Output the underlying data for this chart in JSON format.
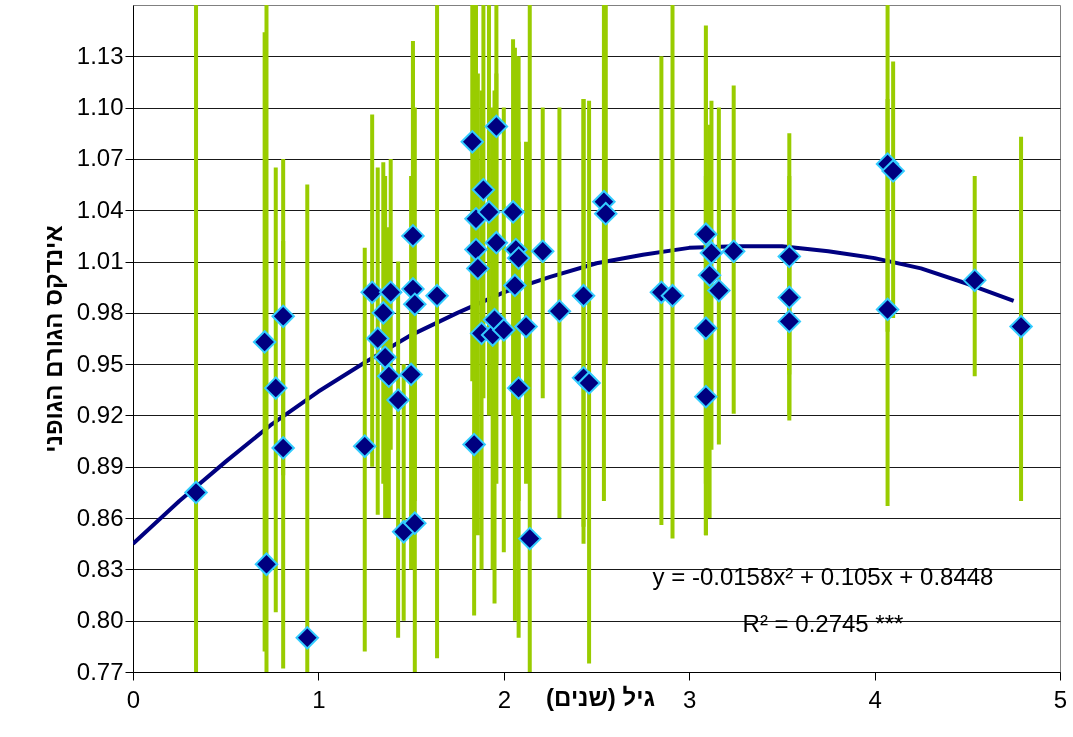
{
  "chart_data": {
    "type": "scatter",
    "xlabel": "גיל (שנים)",
    "ylabel": "אינדקס הגורם הגופני",
    "xlim": [
      0,
      5
    ],
    "xticks": [
      0,
      1,
      2,
      3,
      4,
      5
    ],
    "ylim": [
      0.77,
      1.16
    ],
    "yticks": [
      0.77,
      {
        "value": 0.8,
        "label": "0.80"
      },
      0.83,
      0.86,
      0.89,
      0.92,
      0.95,
      0.98,
      1.01,
      1.04,
      1.07,
      {
        "value": 1.1,
        "label": "1.10"
      },
      1.13
    ],
    "grid": "y",
    "marker": "diamond",
    "annotations": [
      "y = -0.0158x² + 0.105x + 0.8448",
      "R² = 0.2745 ***"
    ],
    "series": [
      {
        "color": "#000080",
        "x": [
          0.34,
          0.71,
          0.72,
          0.77,
          0.81,
          0.81,
          0.94,
          1.25,
          1.29,
          1.32,
          1.35,
          1.36,
          1.38,
          1.39,
          1.43,
          1.46,
          1.5,
          1.51,
          1.51,
          1.52,
          1.52,
          1.64,
          1.83,
          1.85,
          1.85,
          1.86,
          1.88,
          1.84,
          1.89,
          1.92,
          1.94,
          1.95,
          1.96,
          1.96,
          2.0,
          2.05,
          2.065,
          2.06,
          2.08,
          2.08,
          2.12,
          2.14,
          2.21,
          2.3,
          2.43,
          2.43,
          2.46,
          2.54,
          2.55,
          2.85,
          2.91,
          3.09,
          3.11,
          3.09,
          3.09,
          3.12,
          3.16,
          3.24,
          3.54,
          3.54,
          3.54,
          4.07,
          4.1,
          4.07,
          4.54,
          4.79
        ],
        "values": [
          0.875,
          0.963,
          0.833,
          0.936,
          0.901,
          0.978,
          0.79,
          0.902,
          0.992,
          0.965,
          0.98,
          0.954,
          0.943,
          0.992,
          0.929,
          0.852,
          0.944,
          1.025,
          0.994,
          0.985,
          0.857,
          0.99,
          1.08,
          1.035,
          1.017,
          1.006,
          0.968,
          0.903,
          1.052,
          1.039,
          0.967,
          0.976,
          1.089,
          1.021,
          0.97,
          1.039,
          1.017,
          0.996,
          1.012,
          0.936,
          0.972,
          0.848,
          1.016,
          0.981,
          0.99,
          0.942,
          0.939,
          1.045,
          1.038,
          0.992,
          0.99,
          1.026,
          1.002,
          0.971,
          0.931,
          1.015,
          0.993,
          1.016,
          1.013,
          0.989,
          0.975,
          1.067,
          1.063,
          0.982,
          0.999,
          0.972
        ],
        "errors": [
          [
            0.77,
            1.16
          ],
          [
            0.782,
            1.144
          ],
          [
            0.77,
            1.16
          ],
          [
            0.805,
            1.065
          ],
          [
            0.772,
            1.07
          ],
          [
            0.885,
            1.022
          ],
          [
            0.77,
            1.055
          ],
          [
            0.782,
            1.018
          ],
          [
            0.89,
            1.096
          ],
          [
            0.862,
            1.065
          ],
          [
            0.88,
            1.068
          ],
          [
            0.86,
            1.06
          ],
          [
            0.86,
            1.03
          ],
          [
            0.9,
            1.07
          ],
          [
            0.79,
            1.01
          ],
          [
            0.8,
            0.95
          ],
          [
            0.83,
            1.06
          ],
          [
            0.91,
            1.139
          ],
          [
            0.86,
            1.13
          ],
          [
            0.87,
            1.1
          ],
          [
            0.77,
            0.94
          ],
          [
            0.778,
            1.16
          ],
          [
            0.94,
            1.16
          ],
          [
            0.91,
            1.16
          ],
          [
            0.88,
            1.14
          ],
          [
            0.85,
            1.12
          ],
          [
            0.83,
            1.11
          ],
          [
            0.803,
            1.0
          ],
          [
            0.93,
            1.16
          ],
          [
            0.92,
            1.16
          ],
          [
            0.83,
            1.1
          ],
          [
            0.81,
            1.11
          ],
          [
            0.95,
            1.16
          ],
          [
            0.88,
            1.12
          ],
          [
            0.84,
            1.1
          ],
          [
            0.92,
            1.14
          ],
          [
            0.9,
            1.13
          ],
          [
            0.8,
            1.135
          ],
          [
            0.87,
            1.13
          ],
          [
            0.79,
            1.08
          ],
          [
            0.88,
            1.08
          ],
          [
            0.77,
            1.16
          ],
          [
            0.93,
            1.1
          ],
          [
            0.86,
            1.1
          ],
          [
            0.855,
            1.105
          ],
          [
            0.845,
            1.105
          ],
          [
            0.775,
            1.104
          ],
          [
            0.87,
            1.16
          ],
          [
            0.95,
            1.16
          ],
          [
            0.856,
            1.13
          ],
          [
            0.848,
            1.16
          ],
          [
            0.85,
            1.13
          ],
          [
            0.86,
            1.09
          ],
          [
            0.88,
            1.06
          ],
          [
            0.85,
            1.148
          ],
          [
            0.9,
            1.104
          ],
          [
            0.903,
            1.1
          ],
          [
            0.921,
            1.113
          ],
          [
            0.917,
            1.085
          ],
          [
            0.92,
            1.06
          ],
          [
            0.944,
            1.04
          ],
          [
            0.969,
            1.16
          ],
          [
            0.977,
            1.127
          ],
          [
            0.867,
            1.105
          ],
          [
            0.943,
            1.06
          ],
          [
            0.87,
            1.083
          ]
        ]
      },
      {
        "type": "line",
        "color": "#000080",
        "marker": "none",
        "x": [
          0,
          0.25,
          0.5,
          0.75,
          1,
          1.25,
          1.5,
          1.75,
          2,
          2.25,
          2.5,
          2.75,
          3,
          3.25,
          3.5,
          3.75,
          4,
          4.25,
          4.5,
          4.75
        ],
        "values": [
          0.845,
          0.87,
          0.893,
          0.915,
          0.934,
          0.951,
          0.967,
          0.98,
          0.992,
          1.001,
          1.009,
          1.014,
          1.018,
          1.019,
          1.019,
          1.016,
          1.012,
          1.006,
          0.997,
          0.987
        ]
      }
    ]
  }
}
